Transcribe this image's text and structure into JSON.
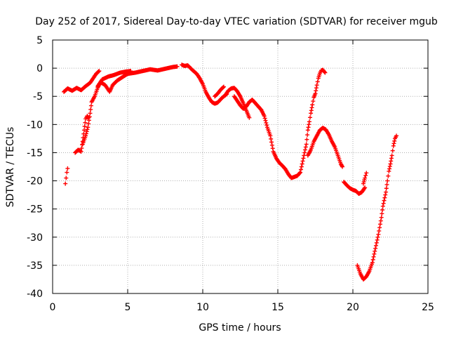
{
  "chart_data": {
    "type": "scatter",
    "title": "Day 252 of 2017, Sidereal Day-to-day VTEC variation (SDTVAR) for receiver mgub",
    "xlabel": "GPS time / hours",
    "ylabel": "SDTVAR / TECUs",
    "xlim": [
      0,
      25
    ],
    "ylim": [
      -40,
      5
    ],
    "xticks": [
      0,
      5,
      10,
      15,
      20,
      25
    ],
    "yticks": [
      5,
      0,
      -5,
      -10,
      -15,
      -20,
      -25,
      -30,
      -35,
      -40
    ],
    "grid": true,
    "marker": "+",
    "color": "#ff0000",
    "series": [
      {
        "segments": [
          [
            [
              0.85,
              -20.5
            ],
            [
              0.9,
              -19.5
            ],
            [
              0.95,
              -18.5
            ],
            [
              1.0,
              -17.8
            ]
          ],
          [
            [
              0.75,
              -4.2
            ],
            [
              1.0,
              -3.6
            ],
            [
              1.3,
              -4.0
            ],
            [
              1.6,
              -3.5
            ],
            [
              1.9,
              -3.9
            ],
            [
              2.2,
              -3.2
            ],
            [
              2.5,
              -2.6
            ],
            [
              2.7,
              -1.8
            ],
            [
              2.9,
              -1.0
            ],
            [
              3.1,
              -0.5
            ]
          ],
          [
            [
              1.5,
              -15.0
            ],
            [
              1.7,
              -14.5
            ],
            [
              1.9,
              -14.8
            ],
            [
              2.0,
              -13.0
            ],
            [
              2.1,
              -11.0
            ],
            [
              2.2,
              -9.0
            ],
            [
              2.3,
              -8.5
            ],
            [
              2.4,
              -8.8
            ]
          ],
          [
            [
              2.0,
              -13.5
            ],
            [
              2.2,
              -12.0
            ],
            [
              2.35,
              -10.5
            ],
            [
              2.5,
              -8.0
            ],
            [
              2.6,
              -6.0
            ],
            [
              2.8,
              -5.0
            ],
            [
              3.0,
              -3.5
            ],
            [
              3.2,
              -2.5
            ],
            [
              3.5,
              -3.0
            ],
            [
              3.8,
              -4.2
            ],
            [
              4.0,
              -3.0
            ],
            [
              4.3,
              -2.2
            ],
            [
              4.7,
              -1.5
            ],
            [
              5.0,
              -1.0
            ],
            [
              5.5,
              -0.8
            ],
            [
              6.0,
              -0.5
            ],
            [
              6.5,
              -0.2
            ],
            [
              7.0,
              -0.4
            ],
            [
              7.5,
              -0.1
            ],
            [
              8.0,
              0.2
            ],
            [
              8.3,
              0.3
            ]
          ],
          [
            [
              3.0,
              -3.2
            ],
            [
              3.3,
              -2.0
            ],
            [
              3.7,
              -1.5
            ],
            [
              4.1,
              -1.2
            ],
            [
              4.5,
              -0.8
            ],
            [
              4.9,
              -0.6
            ],
            [
              5.2,
              -0.5
            ]
          ],
          [
            [
              8.6,
              0.6
            ],
            [
              8.8,
              0.4
            ],
            [
              9.0,
              0.5
            ],
            [
              9.3,
              -0.3
            ],
            [
              9.6,
              -1.0
            ],
            [
              9.8,
              -1.8
            ],
            [
              10.0,
              -2.8
            ],
            [
              10.2,
              -4.2
            ],
            [
              10.4,
              -5.2
            ],
            [
              10.6,
              -6.0
            ],
            [
              10.8,
              -6.3
            ],
            [
              11.0,
              -6.1
            ],
            [
              11.2,
              -5.5
            ],
            [
              11.4,
              -5.0
            ],
            [
              11.6,
              -4.6
            ]
          ],
          [
            [
              10.8,
              -5.0
            ],
            [
              11.0,
              -4.5
            ],
            [
              11.2,
              -3.8
            ],
            [
              11.4,
              -3.3
            ]
          ],
          [
            [
              11.5,
              -4.8
            ],
            [
              11.7,
              -4.0
            ],
            [
              11.9,
              -3.6
            ],
            [
              12.1,
              -3.5
            ],
            [
              12.3,
              -4.1
            ],
            [
              12.5,
              -5.0
            ],
            [
              12.7,
              -6.2
            ],
            [
              12.9,
              -7.5
            ],
            [
              13.1,
              -8.8
            ]
          ],
          [
            [
              12.1,
              -5.0
            ],
            [
              12.3,
              -5.8
            ],
            [
              12.5,
              -6.6
            ],
            [
              12.7,
              -7.2
            ],
            [
              12.9,
              -6.8
            ],
            [
              13.1,
              -6.0
            ],
            [
              13.3,
              -5.6
            ],
            [
              13.5,
              -6.2
            ],
            [
              13.7,
              -6.8
            ],
            [
              13.9,
              -7.4
            ],
            [
              14.1,
              -8.5
            ],
            [
              14.3,
              -10.5
            ],
            [
              14.5,
              -12.0
            ],
            [
              14.7,
              -14.8
            ],
            [
              14.9,
              -16.0
            ],
            [
              15.1,
              -16.8
            ],
            [
              15.3,
              -17.3
            ],
            [
              15.5,
              -17.9
            ],
            [
              15.7,
              -18.8
            ],
            [
              15.9,
              -19.5
            ],
            [
              16.1,
              -19.3
            ],
            [
              16.3,
              -19.1
            ],
            [
              16.5,
              -18.5
            ],
            [
              16.7,
              -16.0
            ],
            [
              16.9,
              -13.5
            ],
            [
              17.0,
              -11.0
            ],
            [
              17.1,
              -9.5
            ],
            [
              17.2,
              -8.0
            ],
            [
              17.3,
              -6.5
            ],
            [
              17.4,
              -5.2
            ],
            [
              17.5,
              -4.5
            ],
            [
              17.6,
              -3.0
            ],
            [
              17.7,
              -1.8
            ],
            [
              17.8,
              -0.9
            ],
            [
              17.9,
              -0.4
            ],
            [
              18.0,
              -0.3
            ],
            [
              18.15,
              -0.8
            ]
          ],
          [
            [
              17.0,
              -15.5
            ],
            [
              17.2,
              -14.5
            ],
            [
              17.4,
              -13.0
            ],
            [
              17.6,
              -12.0
            ],
            [
              17.8,
              -11.0
            ],
            [
              18.0,
              -10.6
            ],
            [
              18.2,
              -10.9
            ],
            [
              18.4,
              -11.8
            ],
            [
              18.6,
              -13.0
            ],
            [
              18.8,
              -14.0
            ],
            [
              19.0,
              -15.5
            ],
            [
              19.2,
              -17.0
            ],
            [
              19.3,
              -17.5
            ]
          ],
          [
            [
              19.4,
              -20.2
            ],
            [
              19.6,
              -20.8
            ],
            [
              19.8,
              -21.3
            ],
            [
              20.0,
              -21.6
            ],
            [
              20.2,
              -21.8
            ],
            [
              20.4,
              -22.3
            ],
            [
              20.6,
              -22.0
            ],
            [
              20.8,
              -21.2
            ]
          ],
          [
            [
              20.7,
              -20.5
            ],
            [
              20.8,
              -19.5
            ],
            [
              20.9,
              -18.6
            ]
          ],
          [
            [
              20.3,
              -35.0
            ],
            [
              20.5,
              -36.5
            ],
            [
              20.7,
              -37.5
            ],
            [
              20.9,
              -37.0
            ],
            [
              21.1,
              -36.0
            ],
            [
              21.3,
              -34.5
            ],
            [
              21.5,
              -32.0
            ],
            [
              21.7,
              -29.5
            ],
            [
              21.9,
              -26.5
            ],
            [
              22.0,
              -24.5
            ],
            [
              22.2,
              -22.0
            ],
            [
              22.3,
              -20.0
            ],
            [
              22.4,
              -18.3
            ],
            [
              22.5,
              -17.0
            ],
            [
              22.6,
              -15.5
            ],
            [
              22.7,
              -13.8
            ],
            [
              22.8,
              -12.5
            ],
            [
              22.9,
              -12.0
            ]
          ]
        ]
      }
    ]
  }
}
